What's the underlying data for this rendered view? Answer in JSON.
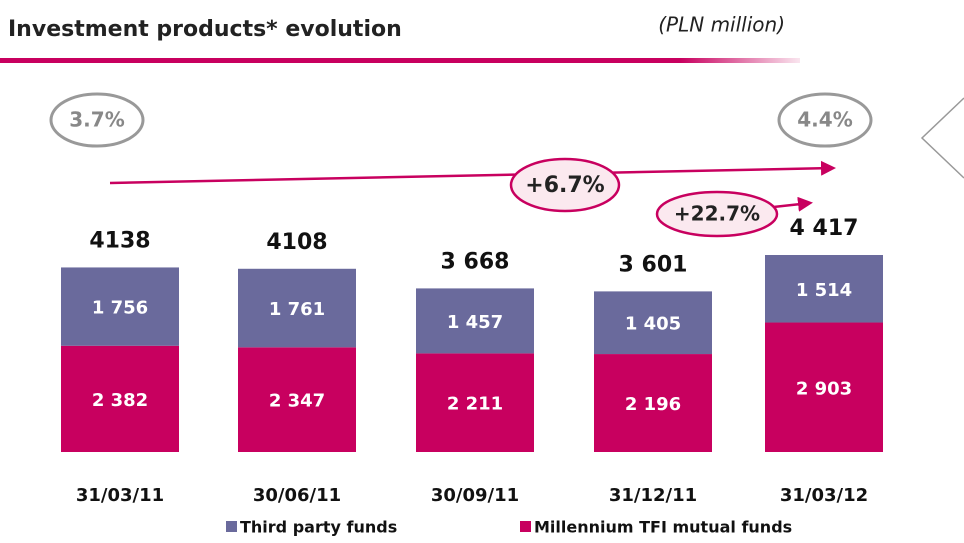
{
  "chart_data": {
    "type": "stacked_bar",
    "title": "Investment products* evolution",
    "subtitle": "(PLN million)",
    "categories": [
      "31/03/11",
      "30/06/11",
      "30/09/11",
      "31/12/11",
      "31/03/12"
    ],
    "series": [
      {
        "name": "Millennium TFI mutual funds",
        "color": "#c8005f",
        "values": [
          2382,
          2347,
          2211,
          2196,
          2903
        ],
        "value_labels": [
          "2 382",
          "2 347",
          "2 211",
          "2 196",
          "2 903"
        ]
      },
      {
        "name": "Third party funds",
        "color": "#6a6a9c",
        "values": [
          1756,
          1761,
          1457,
          1405,
          1514
        ],
        "value_labels": [
          "1 756",
          "1 761",
          "1 457",
          "1 405",
          "1 514"
        ]
      }
    ],
    "total_labels": [
      "4138",
      "4108",
      "3 668",
      "3 601",
      "4 417"
    ],
    "annotations": [
      "3.7%",
      "4.4%",
      "+6.7%",
      "+22.7%"
    ]
  }
}
